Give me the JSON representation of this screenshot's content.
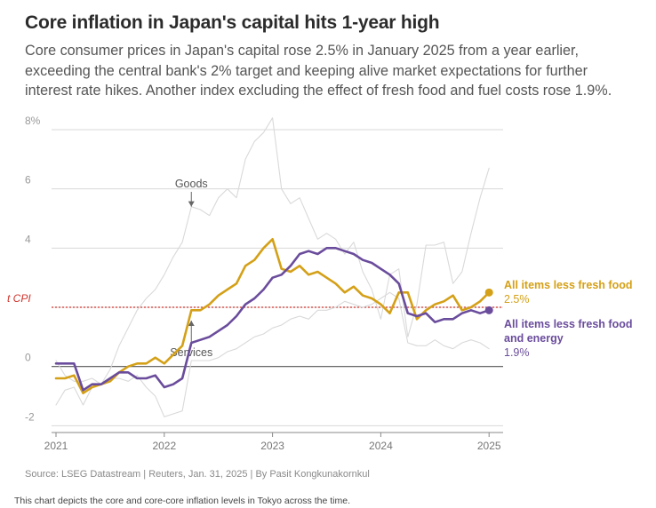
{
  "title": "Core inflation in Japan's capital hits 1-year high",
  "subtitle": "Core consumer prices in Japan's capital rose 2.5% in January 2025 from a year earlier, exceeding the central bank's 2% target and keeping alive market expectations for further interest rate hikes. Another index excluding the effect of fresh food and fuel costs rose 1.9%.",
  "source": "Source: LSEG Datastream | Reuters, Jan. 31, 2025 | By Pasit Kongkunakornkul",
  "caption": "This chart depicts the core and core-core inflation levels in Tokyo across the time.",
  "chart_data": {
    "type": "line",
    "ylim": [
      -2.2,
      8.3
    ],
    "xlim": [
      2020.85,
      2025.1
    ],
    "y_ticks": [
      {
        "value": 8,
        "label": "8%"
      },
      {
        "value": 6,
        "label": "6"
      },
      {
        "value": 4,
        "label": "4"
      },
      {
        "value": 2,
        "label": ""
      },
      {
        "value": 0,
        "label": "0"
      },
      {
        "value": -2,
        "label": "-2"
      }
    ],
    "x_ticks": [
      {
        "value": 2021,
        "label": "2021"
      },
      {
        "value": 2022,
        "label": "2022"
      },
      {
        "value": 2023,
        "label": "2023"
      },
      {
        "value": 2024,
        "label": "2024"
      },
      {
        "value": 2025,
        "label": "2025"
      }
    ],
    "target": {
      "value": 2,
      "label": "t CPI",
      "color": "#d0342c"
    },
    "annotations": [
      {
        "text": "Goods",
        "x": 2022.25,
        "y": 6.05,
        "arrow_to": 5.4
      },
      {
        "text": "Services",
        "x": 2022.25,
        "y": 0.35,
        "arrow_to": 1.55
      }
    ],
    "series": [
      {
        "name": "All items less fresh food",
        "value_label": "2.5%",
        "color": "#d4a017",
        "x": [
          2021.0,
          2021.083,
          2021.167,
          2021.25,
          2021.333,
          2021.417,
          2021.5,
          2021.583,
          2021.667,
          2021.75,
          2021.833,
          2021.917,
          2022.0,
          2022.083,
          2022.167,
          2022.25,
          2022.333,
          2022.417,
          2022.5,
          2022.583,
          2022.667,
          2022.75,
          2022.833,
          2022.917,
          2023.0,
          2023.083,
          2023.167,
          2023.25,
          2023.333,
          2023.417,
          2023.5,
          2023.583,
          2023.667,
          2023.75,
          2023.833,
          2023.917,
          2024.0,
          2024.083,
          2024.167,
          2024.25,
          2024.333,
          2024.417,
          2024.5,
          2024.583,
          2024.667,
          2024.75,
          2024.833,
          2024.917,
          2025.0
        ],
        "values": [
          -0.4,
          -0.4,
          -0.3,
          -0.9,
          -0.7,
          -0.6,
          -0.5,
          -0.2,
          0.0,
          0.1,
          0.1,
          0.3,
          0.1,
          0.4,
          0.7,
          1.9,
          1.9,
          2.1,
          2.4,
          2.6,
          2.8,
          3.4,
          3.6,
          4.0,
          4.3,
          3.3,
          3.2,
          3.4,
          3.1,
          3.2,
          3.0,
          2.8,
          2.5,
          2.7,
          2.4,
          2.3,
          2.1,
          1.8,
          2.5,
          2.5,
          1.6,
          1.9,
          2.1,
          2.2,
          2.4,
          1.9,
          2.0,
          2.2,
          2.5
        ]
      },
      {
        "name": "All items less fresh food and energy",
        "value_label": "1.9%",
        "color": "#6a4c9c",
        "x": [
          2021.0,
          2021.083,
          2021.167,
          2021.25,
          2021.333,
          2021.417,
          2021.5,
          2021.583,
          2021.667,
          2021.75,
          2021.833,
          2021.917,
          2022.0,
          2022.083,
          2022.167,
          2022.25,
          2022.333,
          2022.417,
          2022.5,
          2022.583,
          2022.667,
          2022.75,
          2022.833,
          2022.917,
          2023.0,
          2023.083,
          2023.167,
          2023.25,
          2023.333,
          2023.417,
          2023.5,
          2023.583,
          2023.667,
          2023.75,
          2023.833,
          2023.917,
          2024.0,
          2024.083,
          2024.167,
          2024.25,
          2024.333,
          2024.417,
          2024.5,
          2024.583,
          2024.667,
          2024.75,
          2024.833,
          2024.917,
          2025.0
        ],
        "values": [
          0.1,
          0.1,
          0.1,
          -0.8,
          -0.6,
          -0.6,
          -0.4,
          -0.2,
          -0.2,
          -0.4,
          -0.4,
          -0.3,
          -0.7,
          -0.6,
          -0.4,
          0.8,
          0.9,
          1.0,
          1.2,
          1.4,
          1.7,
          2.1,
          2.3,
          2.6,
          3.0,
          3.1,
          3.4,
          3.8,
          3.9,
          3.8,
          4.0,
          4.0,
          3.9,
          3.8,
          3.6,
          3.5,
          3.3,
          3.1,
          2.8,
          1.8,
          1.7,
          1.8,
          1.5,
          1.6,
          1.6,
          1.8,
          1.9,
          1.8,
          1.9
        ]
      },
      {
        "name": "Goods",
        "value_label": "",
        "color": "#d9d9d9",
        "x": [
          2021.0,
          2021.083,
          2021.167,
          2021.25,
          2021.333,
          2021.417,
          2021.5,
          2021.583,
          2021.667,
          2021.75,
          2021.833,
          2021.917,
          2022.0,
          2022.083,
          2022.167,
          2022.25,
          2022.333,
          2022.417,
          2022.5,
          2022.583,
          2022.667,
          2022.75,
          2022.833,
          2022.917,
          2023.0,
          2023.083,
          2023.167,
          2023.25,
          2023.333,
          2023.417,
          2023.5,
          2023.583,
          2023.667,
          2023.75,
          2023.833,
          2023.917,
          2024.0,
          2024.083,
          2024.167,
          2024.25,
          2024.333,
          2024.417,
          2024.5,
          2024.583,
          2024.667,
          2024.75,
          2024.833,
          2024.917,
          2025.0
        ],
        "values": [
          -1.3,
          -0.8,
          -0.7,
          -1.3,
          -0.7,
          -0.6,
          -0.1,
          0.7,
          1.3,
          1.9,
          2.3,
          2.6,
          3.1,
          3.7,
          4.2,
          5.4,
          5.3,
          5.1,
          5.7,
          6.0,
          5.7,
          7.0,
          7.6,
          7.9,
          8.4,
          6.0,
          5.5,
          5.7,
          5.0,
          4.3,
          4.5,
          4.3,
          3.8,
          4.2,
          3.2,
          2.6,
          1.6,
          3.1,
          3.3,
          1.0,
          2.1,
          4.1,
          4.1,
          4.2,
          2.8,
          3.2,
          4.5,
          5.7,
          6.7
        ]
      },
      {
        "name": "Services",
        "value_label": "",
        "color": "#d9d9d9",
        "x": [
          2021.0,
          2021.083,
          2021.167,
          2021.25,
          2021.333,
          2021.417,
          2021.5,
          2021.583,
          2021.667,
          2021.75,
          2021.833,
          2021.917,
          2022.0,
          2022.083,
          2022.167,
          2022.25,
          2022.333,
          2022.417,
          2022.5,
          2022.583,
          2022.667,
          2022.75,
          2022.833,
          2022.917,
          2023.0,
          2023.083,
          2023.167,
          2023.25,
          2023.333,
          2023.417,
          2023.5,
          2023.583,
          2023.667,
          2023.75,
          2023.833,
          2023.917,
          2024.0,
          2024.083,
          2024.167,
          2024.25,
          2024.333,
          2024.417,
          2024.5,
          2024.583,
          2024.667,
          2024.75,
          2024.833,
          2024.917,
          2025.0
        ],
        "values": [
          0.2,
          -0.3,
          -0.5,
          -0.5,
          -0.4,
          -0.6,
          -0.4,
          -0.4,
          -0.5,
          -0.3,
          -0.7,
          -1.0,
          -1.7,
          -1.6,
          -1.5,
          0.2,
          0.2,
          0.2,
          0.3,
          0.5,
          0.6,
          0.8,
          1.0,
          1.1,
          1.3,
          1.4,
          1.6,
          1.7,
          1.6,
          1.9,
          1.9,
          2.0,
          2.2,
          2.1,
          2.0,
          2.1,
          2.3,
          2.5,
          2.3,
          0.8,
          0.7,
          0.7,
          0.9,
          0.7,
          0.6,
          0.8,
          0.9,
          0.8,
          0.6
        ]
      }
    ]
  }
}
